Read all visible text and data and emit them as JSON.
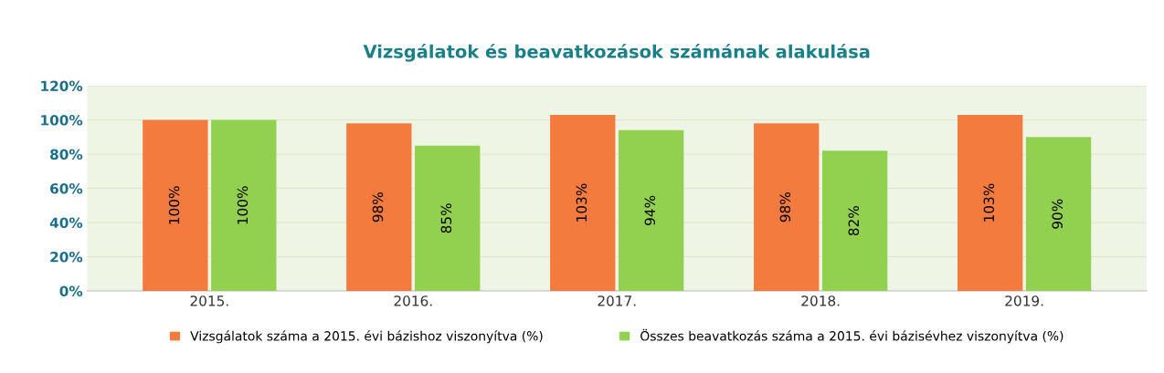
{
  "chart_data": {
    "type": "bar",
    "title": "Vizsgálatok és beavatkozások számának alakulása",
    "categories": [
      "2015.",
      "2016.",
      "2017.",
      "2018.",
      "2019."
    ],
    "series": [
      {
        "name": "Vizsgálatok száma a 2015. évi bázishoz viszonyítva (%)",
        "color": "#f47b3e",
        "values": [
          100,
          98,
          103,
          98,
          103
        ],
        "value_labels": [
          "100%",
          "98%",
          "103%",
          "98%",
          "103%"
        ]
      },
      {
        "name": "Összes beavatkozás száma a 2015. évi bázisévhez viszonyítva (%)",
        "color": "#92d050",
        "values": [
          100,
          85,
          94,
          82,
          90
        ],
        "value_labels": [
          "100%",
          "85%",
          "94%",
          "82%",
          "90%"
        ]
      }
    ],
    "ylim": [
      0,
      120
    ],
    "yticks": [
      {
        "value": 0,
        "label": "0%"
      },
      {
        "value": 20,
        "label": "20%"
      },
      {
        "value": 40,
        "label": "40%"
      },
      {
        "value": 60,
        "label": "60%"
      },
      {
        "value": 80,
        "label": "80%"
      },
      {
        "value": 100,
        "label": "100%"
      },
      {
        "value": 120,
        "label": "120%"
      }
    ],
    "grid": "y",
    "legend": "bottom"
  }
}
